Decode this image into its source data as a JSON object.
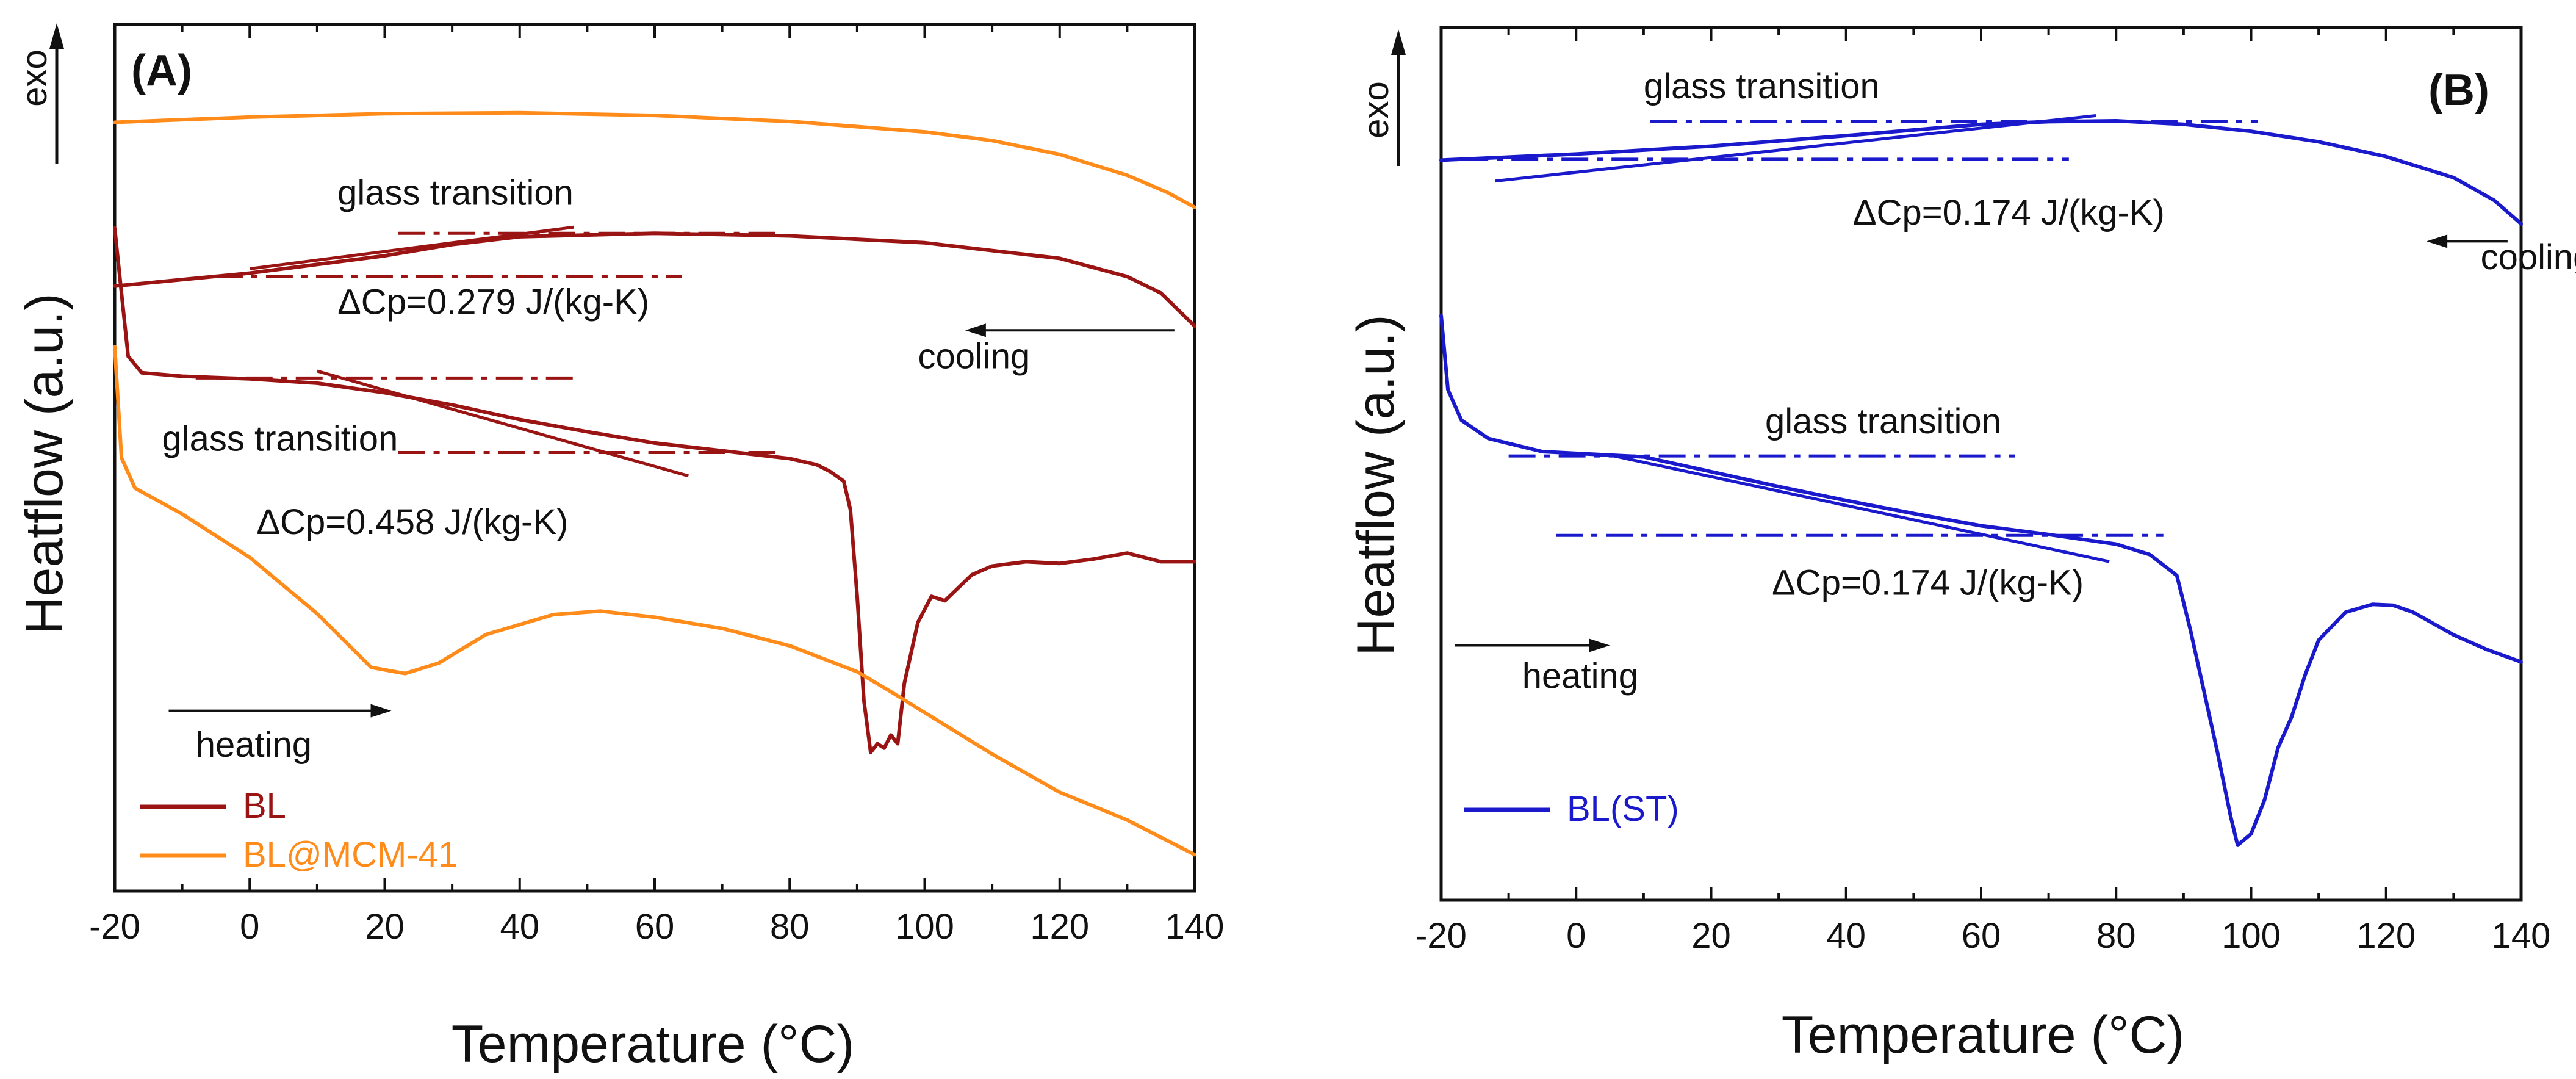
{
  "chart_data": [
    {
      "panel": "(A)",
      "type": "line",
      "xlabel": "Temperature (°C)",
      "ylabel": "Heatflow (a.u.)",
      "exo_label": "exo",
      "xlim": [
        -20,
        140
      ],
      "ylim": [
        0,
        100
      ],
      "xticks": [
        -20,
        0,
        20,
        40,
        60,
        80,
        100,
        120,
        140
      ],
      "y_tick_labels": "none",
      "colors": {
        "BL": "#9b1414",
        "BL@MCM-41": "#ff8c1a",
        "axis": "#111111"
      },
      "series": [
        {
          "name": "BL@MCM-41",
          "segment": "cooling",
          "color": "#ff8c1a",
          "points": [
            [
              -20,
              88.7
            ],
            [
              0,
              89.3
            ],
            [
              20,
              89.7
            ],
            [
              40,
              89.8
            ],
            [
              60,
              89.5
            ],
            [
              80,
              88.8
            ],
            [
              100,
              87.6
            ],
            [
              110,
              86.6
            ],
            [
              120,
              85.0
            ],
            [
              130,
              82.6
            ],
            [
              136,
              80.6
            ],
            [
              140,
              78.9
            ]
          ]
        },
        {
          "name": "BL",
          "segment": "cooling",
          "color": "#9b1414",
          "points": [
            [
              -20,
              69.8
            ],
            [
              0,
              71.3
            ],
            [
              20,
              73.3
            ],
            [
              30,
              74.6
            ],
            [
              40,
              75.5
            ],
            [
              60,
              75.9
            ],
            [
              80,
              75.6
            ],
            [
              100,
              74.8
            ],
            [
              120,
              73.0
            ],
            [
              130,
              70.9
            ],
            [
              135,
              69.0
            ],
            [
              140,
              65.2
            ]
          ]
        },
        {
          "name": "BL",
          "segment": "heating",
          "color": "#9b1414",
          "points": [
            [
              -20,
              76.5
            ],
            [
              -19,
              69.0
            ],
            [
              -18,
              61.7
            ],
            [
              -16,
              59.8
            ],
            [
              -10,
              59.4
            ],
            [
              0,
              59.1
            ],
            [
              10,
              58.6
            ],
            [
              20,
              57.5
            ],
            [
              30,
              56.1
            ],
            [
              40,
              54.4
            ],
            [
              50,
              53.0
            ],
            [
              60,
              51.7
            ],
            [
              70,
              50.8
            ],
            [
              80,
              49.9
            ],
            [
              84,
              49.2
            ],
            [
              86,
              48.4
            ],
            [
              88,
              47.3
            ],
            [
              89,
              44.0
            ],
            [
              90,
              34.0
            ],
            [
              91,
              22.0
            ],
            [
              92,
              16.0
            ],
            [
              93,
              17.0
            ],
            [
              94,
              16.5
            ],
            [
              95,
              18.0
            ],
            [
              96,
              17.0
            ],
            [
              97,
              24.0
            ],
            [
              99,
              31.0
            ],
            [
              101,
              34.0
            ],
            [
              103,
              33.5
            ],
            [
              105,
              35.0
            ],
            [
              107,
              36.5
            ],
            [
              110,
              37.5
            ],
            [
              115,
              38.0
            ],
            [
              120,
              37.8
            ],
            [
              125,
              38.3
            ],
            [
              130,
              39.0
            ],
            [
              135,
              38.0
            ],
            [
              140,
              38.0
            ]
          ]
        },
        {
          "name": "BL@MCM-41",
          "segment": "heating",
          "color": "#ff8c1a",
          "points": [
            [
              -20,
              62.8
            ],
            [
              -19,
              50.0
            ],
            [
              -17,
              46.5
            ],
            [
              -10,
              43.5
            ],
            [
              0,
              38.5
            ],
            [
              10,
              32.0
            ],
            [
              18,
              25.8
            ],
            [
              23,
              25.1
            ],
            [
              28,
              26.3
            ],
            [
              35,
              29.6
            ],
            [
              45,
              31.9
            ],
            [
              52,
              32.3
            ],
            [
              60,
              31.6
            ],
            [
              70,
              30.3
            ],
            [
              80,
              28.3
            ],
            [
              90,
              25.3
            ],
            [
              95,
              23.0
            ],
            [
              100,
              20.6
            ],
            [
              110,
              15.8
            ],
            [
              120,
              11.4
            ],
            [
              130,
              8.2
            ],
            [
              140,
              4.2
            ]
          ]
        }
      ],
      "fit_lines": [
        {
          "color": "#9b1414",
          "kind": "tangent",
          "x": [
            0,
            48
          ],
          "y": [
            71.8,
            76.6
          ]
        },
        {
          "color": "#9b1414",
          "kind": "baseline",
          "x": [
            22,
            78
          ],
          "y": [
            75.9,
            75.9
          ]
        },
        {
          "color": "#9b1414",
          "kind": "baseline",
          "x": [
            -5,
            64
          ],
          "y": [
            70.9,
            70.9
          ]
        },
        {
          "color": "#9b1414",
          "kind": "tangent",
          "x": [
            10,
            65
          ],
          "y": [
            60.0,
            47.9
          ]
        },
        {
          "color": "#9b1414",
          "kind": "baseline",
          "x": [
            -8,
            48
          ],
          "y": [
            59.2,
            59.2
          ]
        },
        {
          "color": "#9b1414",
          "kind": "baseline",
          "x": [
            22,
            78
          ],
          "y": [
            50.6,
            50.6
          ]
        }
      ],
      "annotations": [
        {
          "text": "glass transition",
          "x": 13,
          "y": 79.2
        },
        {
          "text": "ΔCp=0.279 J/(kg-K)",
          "x": 13,
          "y": 66.6
        },
        {
          "text": "cooling",
          "x": 99,
          "y": 60.3
        },
        {
          "text": "glass transition",
          "x": -13,
          "y": 50.8
        },
        {
          "text": "ΔCp=0.458 J/(kg-K)",
          "x": 1,
          "y": 41.2
        },
        {
          "text": "heating",
          "x": -8,
          "y": 15.5
        }
      ],
      "arrows": [
        {
          "label": "cooling",
          "from": [
            137,
            64.7
          ],
          "to": [
            106,
            64.7
          ]
        },
        {
          "label": "heating",
          "from": [
            -12,
            20.8
          ],
          "to": [
            21,
            20.8
          ]
        }
      ],
      "legend": {
        "position": "bottom-left",
        "entries": [
          {
            "label": "BL",
            "color": "#9b1414"
          },
          {
            "label": "BL@MCM-41",
            "color": "#ff8c1a"
          }
        ]
      }
    },
    {
      "panel": "(B)",
      "type": "line",
      "xlabel": "Temperature (°C)",
      "ylabel": "Heatflow (a.u.)",
      "exo_label": "exo",
      "xlim": [
        -20,
        140
      ],
      "ylim": [
        0,
        100
      ],
      "xticks": [
        -20,
        0,
        20,
        40,
        60,
        80,
        100,
        120,
        140
      ],
      "y_tick_labels": "none",
      "colors": {
        "BL(ST)": "#1a1acc",
        "axis": "#111111"
      },
      "series": [
        {
          "name": "BL(ST)",
          "segment": "cooling",
          "color": "#1a1acc",
          "points": [
            [
              -20,
              84.8
            ],
            [
              0,
              85.5
            ],
            [
              20,
              86.4
            ],
            [
              40,
              87.6
            ],
            [
              60,
              88.9
            ],
            [
              70,
              89.2
            ],
            [
              80,
              89.3
            ],
            [
              90,
              88.9
            ],
            [
              100,
              88.1
            ],
            [
              110,
              86.9
            ],
            [
              120,
              85.2
            ],
            [
              130,
              82.8
            ],
            [
              136,
              80.2
            ],
            [
              140,
              77.5
            ]
          ]
        },
        {
          "name": "BL(ST)",
          "segment": "heating",
          "color": "#1a1acc",
          "points": [
            [
              -20,
              67.0
            ],
            [
              -19,
              58.5
            ],
            [
              -17,
              55.0
            ],
            [
              -13,
              52.9
            ],
            [
              -5,
              51.4
            ],
            [
              5,
              51.0
            ],
            [
              10,
              50.8
            ],
            [
              20,
              49.1
            ],
            [
              30,
              47.4
            ],
            [
              40,
              45.8
            ],
            [
              50,
              44.3
            ],
            [
              60,
              42.9
            ],
            [
              70,
              41.9
            ],
            [
              80,
              40.8
            ],
            [
              85,
              39.6
            ],
            [
              89,
              37.2
            ],
            [
              91,
              31.0
            ],
            [
              93,
              24.0
            ],
            [
              95,
              17.0
            ],
            [
              97,
              9.5
            ],
            [
              98,
              6.3
            ],
            [
              100,
              7.6
            ],
            [
              102,
              11.5
            ],
            [
              104,
              17.5
            ],
            [
              106,
              21.0
            ],
            [
              108,
              25.8
            ],
            [
              110,
              29.8
            ],
            [
              114,
              33.0
            ],
            [
              118,
              33.9
            ],
            [
              121,
              33.8
            ],
            [
              124,
              33.0
            ],
            [
              130,
              30.4
            ],
            [
              135,
              28.7
            ],
            [
              140,
              27.3
            ]
          ]
        }
      ],
      "fit_lines": [
        {
          "color": "#1a1acc",
          "kind": "tangent",
          "x": [
            -12,
            77
          ],
          "y": [
            82.4,
            89.9
          ]
        },
        {
          "color": "#1a1acc",
          "kind": "baseline",
          "x": [
            11,
            101
          ],
          "y": [
            89.2,
            89.2
          ]
        },
        {
          "color": "#1a1acc",
          "kind": "baseline",
          "x": [
            -17,
            73
          ],
          "y": [
            84.9,
            84.9
          ]
        },
        {
          "color": "#1a1acc",
          "kind": "tangent",
          "x": [
            5,
            79
          ],
          "y": [
            51.0,
            38.8
          ]
        },
        {
          "color": "#1a1acc",
          "kind": "baseline",
          "x": [
            -10,
            65
          ],
          "y": [
            50.9,
            50.9
          ]
        },
        {
          "color": "#1a1acc",
          "kind": "baseline",
          "x": [
            -3,
            87
          ],
          "y": [
            41.8,
            41.8
          ]
        }
      ],
      "annotations": [
        {
          "text": "glass transition",
          "x": 10,
          "y": 91.9
        },
        {
          "text": "ΔCp=0.174 J/(kg-K)",
          "x": 41,
          "y": 77.4
        },
        {
          "text": "cooling",
          "x": 134,
          "y": 72.3
        },
        {
          "text": "glass transition",
          "x": 28,
          "y": 53.5
        },
        {
          "text": "ΔCp=0.174 J/(kg-K)",
          "x": 29,
          "y": 35.0
        },
        {
          "text": "heating",
          "x": -8,
          "y": 24.3
        }
      ],
      "arrows": [
        {
          "label": "cooling",
          "from": [
            138,
            75.5
          ],
          "to": [
            126,
            75.5
          ]
        },
        {
          "label": "heating",
          "from": [
            -18,
            29.2
          ],
          "to": [
            5,
            29.2
          ]
        }
      ],
      "legend": {
        "position": "bottom-left",
        "entries": [
          {
            "label": "BL(ST)",
            "color": "#1a1acc"
          }
        ]
      }
    }
  ]
}
